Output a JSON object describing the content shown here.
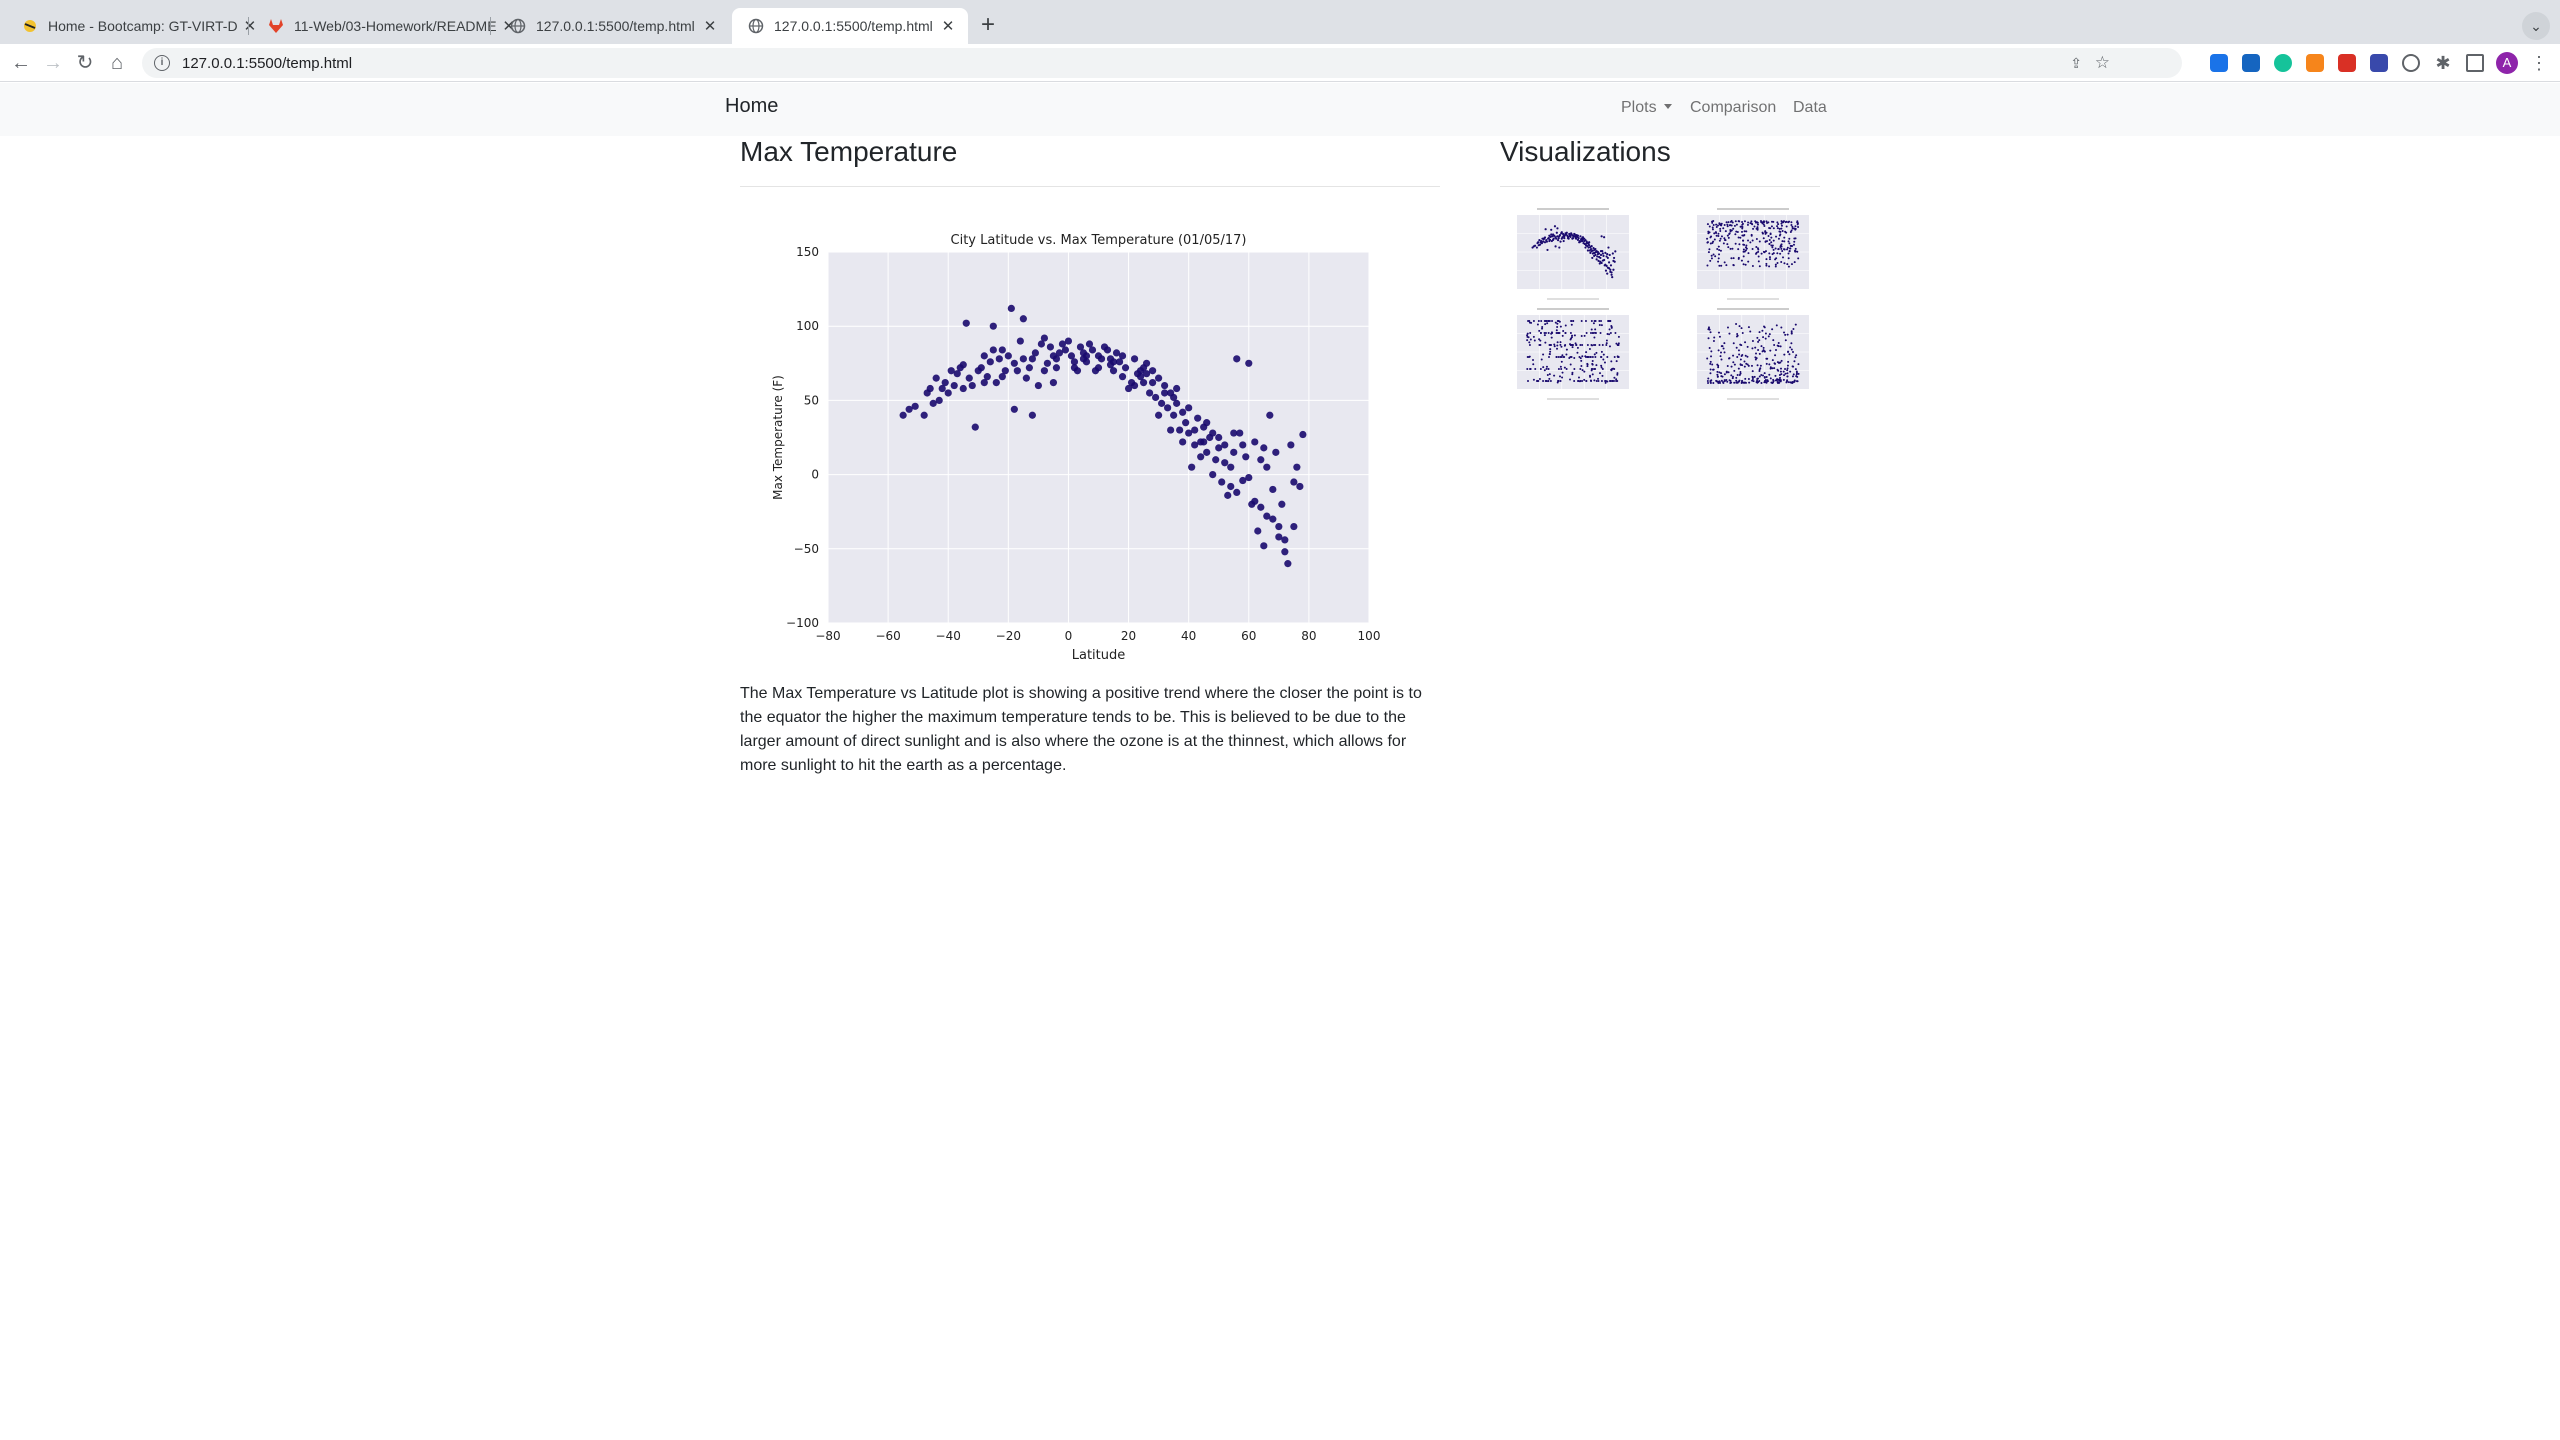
{
  "browser": {
    "tabs": [
      {
        "title": "Home - Bootcamp: GT-VIRT-D",
        "active": false
      },
      {
        "title": "11-Web/03-Homework/README",
        "active": false
      },
      {
        "title": "127.0.0.1:5500/temp.html",
        "active": false
      },
      {
        "title": "127.0.0.1:5500/temp.html",
        "active": true
      }
    ],
    "url": "127.0.0.1:5500/temp.html",
    "profile_initial": "A"
  },
  "navbar": {
    "brand": "Home",
    "plots_label": "Plots",
    "comparison_label": "Comparison",
    "data_label": "Data"
  },
  "main": {
    "heading": "Max Temperature",
    "description": "The Max Temperature vs Latitude plot is showing a positive trend where the closer the point is to the equator the higher the maximum temperature tends to be. This is believed to be due to the larger amount of direct sunlight and is also where the ozone is at the thinnest, which allows for more sunlight to hit the earth as a percentage."
  },
  "sidebar": {
    "heading": "Visualizations",
    "thumbnails": [
      "max-temperature",
      "humidity",
      "cloudiness",
      "wind-speed"
    ]
  },
  "colors": {
    "marker": "#1a0a6e",
    "plot_bg": "#e8e8f0",
    "grid": "#ffffff"
  },
  "chart_data": {
    "type": "scatter",
    "title": "City Latitude vs. Max Temperature (01/05/17)",
    "xlabel": "Latitude",
    "ylabel": "Max Temperature (F)",
    "xlim": [
      -80,
      100
    ],
    "ylim": [
      -100,
      150
    ],
    "xticks": [
      "−80",
      "−60",
      "−40",
      "−20",
      "0",
      "20",
      "40",
      "60",
      "80",
      "100"
    ],
    "yticks": [
      "−100",
      "−50",
      "0",
      "50",
      "100",
      "150"
    ],
    "grid": true,
    "points": [
      [
        -55,
        40
      ],
      [
        -53,
        44
      ],
      [
        -51,
        46
      ],
      [
        -48,
        40
      ],
      [
        -47,
        55
      ],
      [
        -46,
        58
      ],
      [
        -45,
        48
      ],
      [
        -44,
        65
      ],
      [
        -43,
        50
      ],
      [
        -42,
        58
      ],
      [
        -41,
        62
      ],
      [
        -40,
        55
      ],
      [
        -39,
        70
      ],
      [
        -38,
        60
      ],
      [
        -37,
        68
      ],
      [
        -36,
        72
      ],
      [
        -35,
        74
      ],
      [
        -34,
        102
      ],
      [
        -33,
        65
      ],
      [
        -32,
        60
      ],
      [
        -31,
        32
      ],
      [
        -30,
        70
      ],
      [
        -29,
        72
      ],
      [
        -28,
        80
      ],
      [
        -27,
        66
      ],
      [
        -26,
        76
      ],
      [
        -25,
        100
      ],
      [
        -24,
        62
      ],
      [
        -23,
        78
      ],
      [
        -22,
        84
      ],
      [
        -21,
        70
      ],
      [
        -20,
        80
      ],
      [
        -19,
        112
      ],
      [
        -18,
        44
      ],
      [
        -17,
        70
      ],
      [
        -16,
        90
      ],
      [
        -15,
        105
      ],
      [
        -14,
        65
      ],
      [
        -13,
        72
      ],
      [
        -12,
        40
      ],
      [
        -11,
        82
      ],
      [
        -10,
        60
      ],
      [
        -9,
        88
      ],
      [
        -8,
        92
      ],
      [
        -7,
        75
      ],
      [
        -6,
        86
      ],
      [
        -5,
        62
      ],
      [
        -4,
        78
      ],
      [
        -3,
        82
      ],
      [
        -2,
        88
      ],
      [
        -1,
        84
      ],
      [
        0,
        90
      ],
      [
        1,
        80
      ],
      [
        2,
        76
      ],
      [
        3,
        70
      ],
      [
        4,
        86
      ],
      [
        5,
        82
      ],
      [
        6,
        76
      ],
      [
        7,
        88
      ],
      [
        8,
        84
      ],
      [
        9,
        70
      ],
      [
        10,
        80
      ],
      [
        11,
        78
      ],
      [
        12,
        86
      ],
      [
        13,
        84
      ],
      [
        14,
        78
      ],
      [
        15,
        70
      ],
      [
        16,
        82
      ],
      [
        17,
        76
      ],
      [
        18,
        80
      ],
      [
        19,
        72
      ],
      [
        20,
        58
      ],
      [
        21,
        62
      ],
      [
        22,
        78
      ],
      [
        23,
        68
      ],
      [
        24,
        70
      ],
      [
        25,
        62
      ],
      [
        26,
        75
      ],
      [
        27,
        55
      ],
      [
        28,
        70
      ],
      [
        29,
        52
      ],
      [
        30,
        65
      ],
      [
        31,
        48
      ],
      [
        32,
        60
      ],
      [
        33,
        45
      ],
      [
        34,
        55
      ],
      [
        35,
        40
      ],
      [
        36,
        58
      ],
      [
        37,
        30
      ],
      [
        38,
        42
      ],
      [
        39,
        35
      ],
      [
        40,
        28
      ],
      [
        41,
        5
      ],
      [
        42,
        20
      ],
      [
        43,
        38
      ],
      [
        44,
        22
      ],
      [
        45,
        32
      ],
      [
        46,
        15
      ],
      [
        47,
        25
      ],
      [
        48,
        28
      ],
      [
        49,
        10
      ],
      [
        50,
        25
      ],
      [
        51,
        -5
      ],
      [
        52,
        20
      ],
      [
        53,
        -14
      ],
      [
        54,
        5
      ],
      [
        55,
        15
      ],
      [
        56,
        78
      ],
      [
        57,
        28
      ],
      [
        58,
        -4
      ],
      [
        59,
        12
      ],
      [
        60,
        75
      ],
      [
        61,
        -20
      ],
      [
        62,
        22
      ],
      [
        63,
        -38
      ],
      [
        64,
        10
      ],
      [
        65,
        -48
      ],
      [
        66,
        5
      ],
      [
        67,
        40
      ],
      [
        68,
        -30
      ],
      [
        69,
        15
      ],
      [
        70,
        -42
      ],
      [
        71,
        -20
      ],
      [
        72,
        -52
      ],
      [
        73,
        -60
      ],
      [
        74,
        20
      ],
      [
        75,
        -5
      ],
      [
        76,
        5
      ],
      [
        77,
        -8
      ],
      [
        78,
        27
      ],
      [
        -35,
        58
      ],
      [
        -28,
        62
      ],
      [
        -22,
        66
      ],
      [
        -18,
        75
      ],
      [
        -12,
        78
      ],
      [
        -8,
        70
      ],
      [
        -4,
        72
      ],
      [
        2,
        72
      ],
      [
        6,
        80
      ],
      [
        10,
        72
      ],
      [
        14,
        74
      ],
      [
        18,
        66
      ],
      [
        22,
        60
      ],
      [
        26,
        68
      ],
      [
        30,
        40
      ],
      [
        34,
        30
      ],
      [
        38,
        22
      ],
      [
        42,
        30
      ],
      [
        46,
        35
      ],
      [
        50,
        18
      ],
      [
        54,
        -8
      ],
      [
        58,
        20
      ],
      [
        62,
        -18
      ],
      [
        66,
        -28
      ],
      [
        70,
        -35
      ],
      [
        72,
        -44
      ],
      [
        44,
        12
      ],
      [
        48,
        0
      ],
      [
        52,
        8
      ],
      [
        56,
        -12
      ],
      [
        60,
        -2
      ],
      [
        64,
        -22
      ],
      [
        68,
        -10
      ],
      [
        40,
        45
      ],
      [
        36,
        48
      ],
      [
        32,
        55
      ],
      [
        28,
        62
      ],
      [
        24,
        66
      ],
      [
        -25,
        84
      ],
      [
        -15,
        78
      ],
      [
        -5,
        80
      ],
      [
        5,
        78
      ],
      [
        15,
        76
      ],
      [
        25,
        72
      ],
      [
        35,
        52
      ],
      [
        45,
        22
      ],
      [
        55,
        28
      ],
      [
        65,
        18
      ],
      [
        75,
        -35
      ]
    ]
  }
}
